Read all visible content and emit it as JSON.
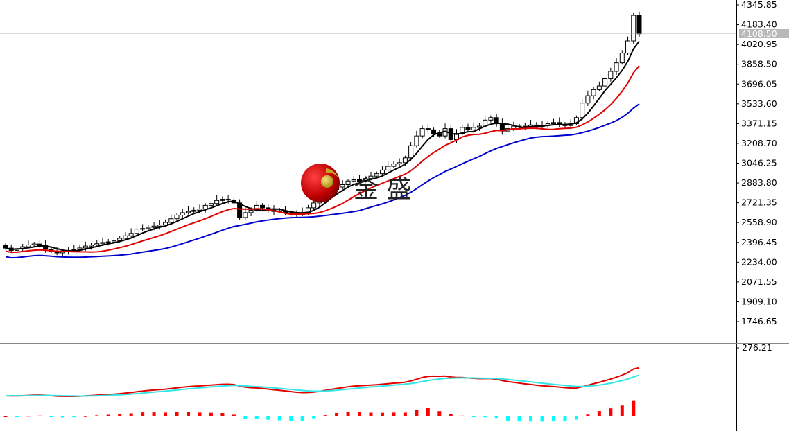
{
  "chart_data": [
    {
      "type": "candlestick",
      "indicators": [
        "moving-average-short",
        "moving-average-medium",
        "moving-average-long"
      ],
      "colors": {
        "ma_short": "#000000",
        "ma_medium": "#e00000",
        "ma_long": "#0000cc",
        "up_body": "#ffffff",
        "down_body": "#000000"
      },
      "ylim": [
        1746.65,
        4345.85
      ],
      "y_ticks": [
        "4345.85",
        "4183.40",
        "4020.95",
        "3858.50",
        "3696.05",
        "3533.60",
        "3371.15",
        "3208.70",
        "3046.25",
        "2883.80",
        "2721.35",
        "2558.90",
        "2396.45",
        "2234.00",
        "2071.55",
        "1909.10",
        "1746.65"
      ],
      "current_price": "4108.50",
      "open_first": 2370,
      "close": [
        2349,
        2330,
        2345,
        2360,
        2375,
        2383,
        2370,
        2340,
        2320,
        2310,
        2325,
        2330,
        2335,
        2350,
        2366,
        2375,
        2385,
        2395,
        2400,
        2410,
        2430,
        2450,
        2470,
        2505,
        2510,
        2520,
        2530,
        2540,
        2560,
        2590,
        2620,
        2640,
        2650,
        2660,
        2670,
        2700,
        2715,
        2740,
        2750,
        2745,
        2720,
        2600,
        2640,
        2660,
        2700,
        2680,
        2660,
        2650,
        2655,
        2640,
        2630,
        2625,
        2640,
        2680,
        2720,
        2760,
        2800,
        2830,
        2850,
        2870,
        2900,
        2910,
        2895,
        2920,
        2940,
        2960,
        2990,
        3020,
        3040,
        3050,
        3090,
        3190,
        3270,
        3330,
        3320,
        3290,
        3270,
        3330,
        3240,
        3290,
        3340,
        3320,
        3340,
        3350,
        3400,
        3420,
        3370,
        3310,
        3330,
        3350,
        3345,
        3350,
        3360,
        3345,
        3355,
        3370,
        3380,
        3360,
        3355,
        3370,
        3420,
        3540,
        3600,
        3650,
        3680,
        3740,
        3800,
        3870,
        3950,
        4050,
        4260,
        4108.5
      ],
      "grid": false
    },
    {
      "type": "macd",
      "y_tick": "276.21",
      "colors": {
        "macd_line": "#e00000",
        "signal_line": "#33e6e6",
        "hist_positive": "#ff0000",
        "hist_negative": "#00ffff"
      }
    }
  ],
  "logo": {
    "text": "金 盛"
  }
}
